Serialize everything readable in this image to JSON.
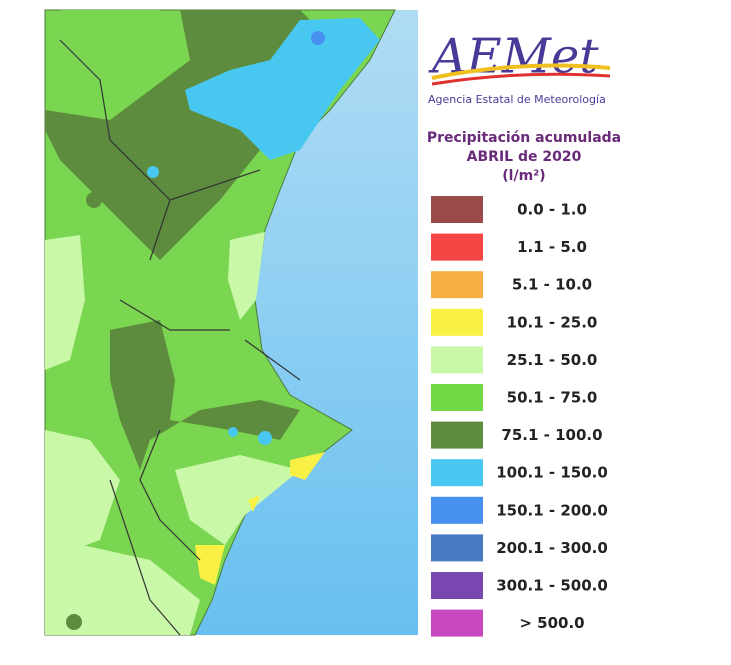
{
  "logo": {
    "text": "AEMet",
    "subtitle": "Agencia Estatal de Meteorología"
  },
  "legend": {
    "title": [
      "Precipitación acumulada",
      "ABRIL de 2020",
      "(l/m²)"
    ],
    "items": [
      {
        "label": "0.0 - 1.0",
        "color": "#9b4a4a"
      },
      {
        "label": "1.1 - 5.0",
        "color": "#f54545"
      },
      {
        "label": "5.1 - 10.0",
        "color": "#f8b045"
      },
      {
        "label": "10.1 - 25.0",
        "color": "#f8f045"
      },
      {
        "label": "25.1 - 50.0",
        "color": "#c8f8a8"
      },
      {
        "label": "50.1 - 75.0",
        "color": "#6fd845"
      },
      {
        "label": "75.1 - 100.0",
        "color": "#5e8c3e"
      },
      {
        "label": "100.1 - 150.0",
        "color": "#48c8f0"
      },
      {
        "label": "150.1 - 200.0",
        "color": "#4890f0"
      },
      {
        "label": "200.1 - 300.0",
        "color": "#4878c0"
      },
      {
        "label": "300.1 - 500.0",
        "color": "#7848b0"
      },
      {
        "label": "> 500.0",
        "color": "#c848c0"
      }
    ]
  }
}
